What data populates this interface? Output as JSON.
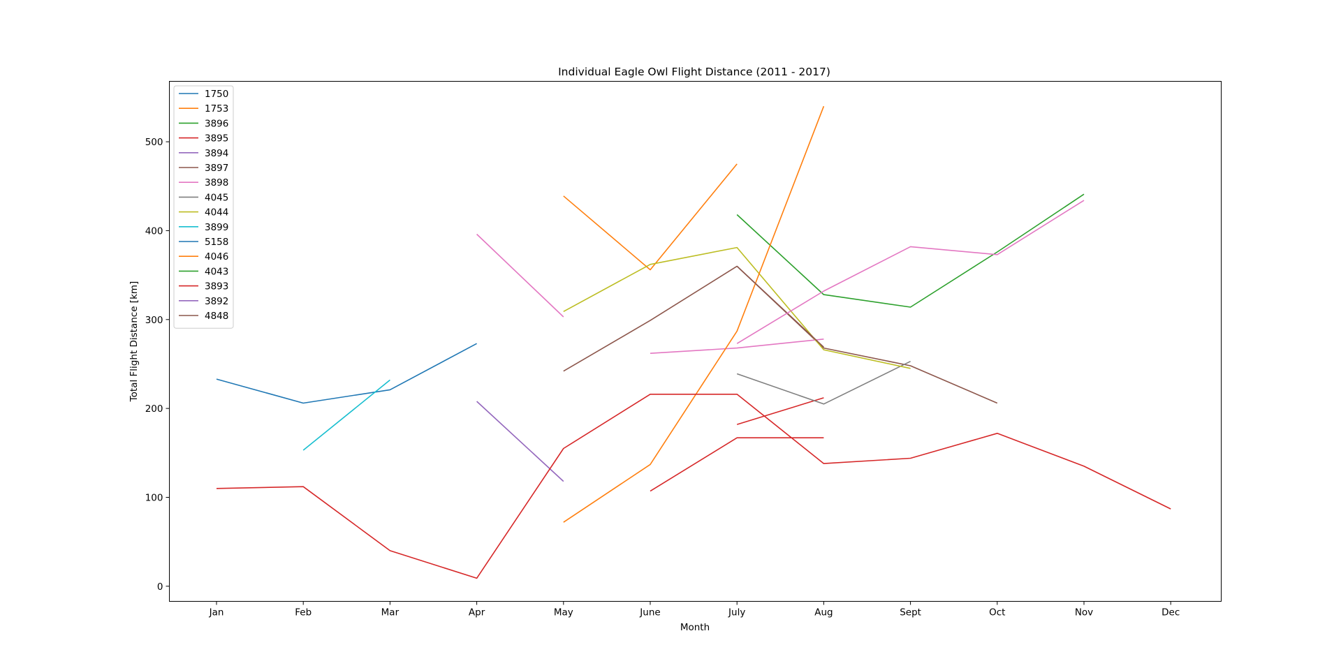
{
  "chart_data": {
    "type": "line",
    "title": "Individual Eagle Owl Flight Distance (2011 - 2017)",
    "xlabel": "Month",
    "ylabel": "Total Flight Distance [km]",
    "categories": [
      "Jan",
      "Feb",
      "Mar",
      "Apr",
      "May",
      "June",
      "July",
      "Aug",
      "Sept",
      "Oct",
      "Nov",
      "Dec"
    ],
    "ylim": [
      -17,
      568
    ],
    "yticks": [
      0,
      100,
      200,
      300,
      400,
      500
    ],
    "grid": false,
    "legend": "top-left",
    "series": [
      {
        "name": "1750",
        "color": "#1f77b4",
        "values": [
          233,
          206,
          221,
          273,
          null,
          null,
          null,
          null,
          null,
          null,
          null,
          null
        ]
      },
      {
        "name": "1753",
        "color": "#ff7f0e",
        "values": [
          null,
          null,
          null,
          null,
          439,
          356,
          475,
          null,
          null,
          null,
          null,
          null
        ]
      },
      {
        "name": "3896",
        "color": "#2ca02c",
        "values": [
          null,
          null,
          null,
          null,
          null,
          null,
          418,
          328,
          314,
          376,
          441,
          null
        ]
      },
      {
        "name": "3895",
        "color": "#d62728",
        "values": [
          null,
          null,
          null,
          null,
          null,
          null,
          182,
          212,
          null,
          null,
          null,
          null
        ]
      },
      {
        "name": "3894",
        "color": "#9467bd",
        "values": [
          null,
          null,
          null,
          208,
          118,
          null,
          null,
          null,
          null,
          null,
          null,
          null
        ]
      },
      {
        "name": "3897",
        "color": "#8c564b",
        "values": [
          null,
          null,
          null,
          null,
          null,
          null,
          360,
          268,
          248,
          206,
          null,
          null
        ]
      },
      {
        "name": "3898",
        "color": "#e377c2",
        "values": [
          null,
          null,
          null,
          null,
          null,
          262,
          268,
          278,
          null,
          null,
          null,
          null
        ]
      },
      {
        "name": "4045",
        "color": "#7f7f7f",
        "values": [
          null,
          null,
          null,
          null,
          null,
          null,
          239,
          205,
          253,
          null,
          null,
          null
        ]
      },
      {
        "name": "4044",
        "color": "#bcbd22",
        "values": [
          null,
          null,
          null,
          null,
          309,
          362,
          381,
          266,
          245,
          null,
          null,
          null
        ]
      },
      {
        "name": "3899",
        "color": "#17becf",
        "values": [
          null,
          153,
          232,
          null,
          null,
          null,
          null,
          null,
          null,
          null,
          null,
          null
        ]
      },
      {
        "name": "5158",
        "color": "#1f77b4",
        "values": [
          null,
          null,
          null,
          null,
          null,
          null,
          null,
          null,
          null,
          null,
          null,
          null
        ]
      },
      {
        "name": "4046",
        "color": "#ff7f0e",
        "values": [
          null,
          null,
          null,
          null,
          72,
          137,
          287,
          540,
          null,
          null,
          null,
          null
        ]
      },
      {
        "name": "4043",
        "color": "#2ca02c",
        "values": [
          null,
          null,
          null,
          null,
          null,
          null,
          null,
          null,
          null,
          null,
          null,
          null
        ]
      },
      {
        "name": "3893",
        "color": "#d62728",
        "values": [
          110,
          112,
          40,
          9,
          155,
          216,
          216,
          138,
          144,
          172,
          135,
          87
        ]
      },
      {
        "name": "3892",
        "color": "#9467bd",
        "values": [
          null,
          null,
          null,
          null,
          null,
          null,
          null,
          null,
          null,
          null,
          null,
          null
        ]
      },
      {
        "name": "4848",
        "color": "#8c564b",
        "values": [
          null,
          null,
          null,
          null,
          242,
          299,
          360,
          269,
          null,
          null,
          null,
          null
        ]
      },
      {
        "name": "",
        "color": "#e377c2",
        "values": [
          null,
          null,
          null,
          396,
          303,
          null,
          null,
          null,
          null,
          null,
          null,
          null
        ]
      },
      {
        "name": "",
        "color": "#e377c2",
        "values": [
          null,
          null,
          null,
          null,
          null,
          null,
          273,
          332,
          382,
          373,
          434,
          null
        ]
      },
      {
        "name": "",
        "color": "#d62728",
        "values": [
          null,
          null,
          null,
          null,
          null,
          107,
          167,
          167,
          null,
          null,
          null,
          null
        ]
      }
    ]
  }
}
